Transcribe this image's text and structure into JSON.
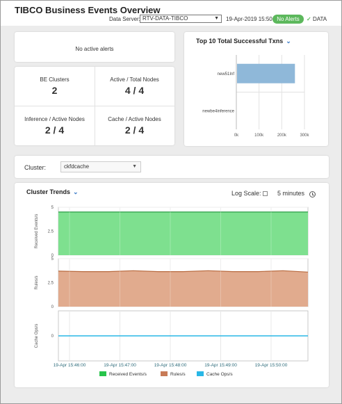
{
  "header": {
    "title": "TIBCO Business Events Overview",
    "data_server_label": "Data Server:",
    "data_server_value": "RTV-DATA-TIBCO",
    "timestamp": "19-Apr-2019 15:50",
    "alerts_badge": "No Alerts",
    "data_status": "DATA"
  },
  "alerts_panel": {
    "message": "No active alerts"
  },
  "metrics": [
    {
      "label": "BE Clusters",
      "value": "2"
    },
    {
      "label": "Active / Total Nodes",
      "value": "4 / 4"
    },
    {
      "label": "Inference / Active Nodes",
      "value": "2 / 4"
    },
    {
      "label": "Cache / Active Nodes",
      "value": "2 / 4"
    }
  ],
  "top_txns": {
    "title": "Top 10 Total Successful Txns",
    "chart_data": {
      "type": "bar",
      "orientation": "horizontal",
      "categories": [
        "new51Inf",
        "newbe4inference"
      ],
      "values": [
        255000,
        0
      ],
      "xlim": [
        0,
        300000
      ],
      "x_ticks": [
        0,
        100000,
        200000,
        300000
      ],
      "x_tick_labels": [
        "0k",
        "100k",
        "200k",
        "300k"
      ],
      "bar_color": "#8fb8d9"
    }
  },
  "cluster_selector": {
    "label": "Cluster:",
    "value": "ckfdcache"
  },
  "cluster_trends": {
    "title": "Cluster Trends",
    "log_scale_label": "Log Scale:",
    "time_range": "5 minutes",
    "chart_data": [
      {
        "type": "area",
        "ylabel": "Received Events/s",
        "ylim": [
          0,
          5
        ],
        "y_ticks": [
          0,
          2.5,
          5
        ],
        "y_tick_labels": [
          "0",
          "2.5",
          "5"
        ],
        "series": [
          {
            "name": "Received Events/s",
            "color": "#7ee08f",
            "line_color": "#2a9d47",
            "values": [
              4.5,
              4.5,
              4.5,
              4.5,
              4.5,
              4.5,
              4.5,
              4.5,
              4.5,
              4.5,
              4.5
            ]
          }
        ]
      },
      {
        "type": "area",
        "ylabel": "Rules/s",
        "ylim": [
          0,
          5
        ],
        "y_ticks": [
          0,
          2.5,
          5
        ],
        "y_tick_labels": [
          "0",
          "2.5",
          "5"
        ],
        "series": [
          {
            "name": "Rules/s",
            "color": "#e1ab8e",
            "line_color": "#b86a3f",
            "values": [
              3.7,
              3.65,
              3.65,
              3.75,
              3.65,
              3.65,
              3.75,
              3.65,
              3.65,
              3.75,
              3.6
            ]
          }
        ]
      },
      {
        "type": "line",
        "ylabel": "Cache Ops/s",
        "ylim": [
          -1,
          1
        ],
        "y_ticks": [
          0
        ],
        "y_tick_labels": [
          "0"
        ],
        "series": [
          {
            "name": "Cache Ops/s",
            "color": "#29b7e6",
            "values": [
              0,
              0,
              0,
              0,
              0,
              0,
              0,
              0,
              0,
              0,
              0
            ]
          }
        ]
      }
    ],
    "x_tick_labels": [
      "19-Apr 15:46:00",
      "19-Apr 15:47:00",
      "19-Apr 15:48:00",
      "19-Apr 15:49:00",
      "19-Apr 15:50:00"
    ],
    "legend": [
      {
        "name": "Received Events/s",
        "color": "#27c44b"
      },
      {
        "name": "Rules/s",
        "color": "#c87b57"
      },
      {
        "name": "Cache Ops/s",
        "color": "#29b7e6"
      }
    ]
  }
}
